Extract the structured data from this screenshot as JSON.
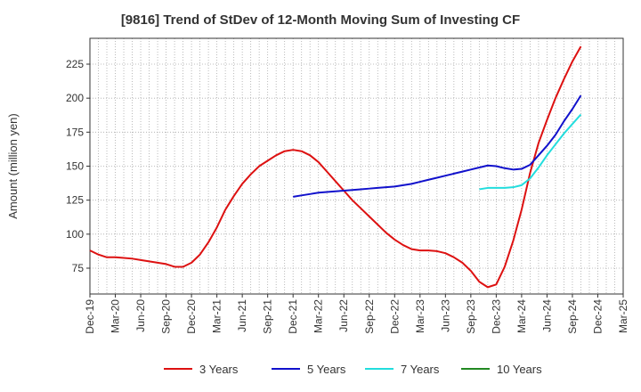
{
  "chart_data": {
    "type": "line",
    "title": "[9816]  Trend of StDev of 12-Month Moving Sum of Investing CF",
    "ylabel": "Amount (million yen)",
    "xlabel": "",
    "ylim": [
      56,
      244
    ],
    "yticks": [
      75,
      100,
      125,
      150,
      175,
      200,
      225
    ],
    "x_tick_labels": [
      "Dec-19",
      "Mar-20",
      "Jun-20",
      "Sep-20",
      "Dec-20",
      "Mar-21",
      "Jun-21",
      "Sep-21",
      "Dec-21",
      "Mar-22",
      "Jun-22",
      "Sep-22",
      "Dec-22",
      "Mar-23",
      "Jun-23",
      "Sep-23",
      "Dec-23",
      "Mar-24",
      "Jun-24",
      "Sep-24",
      "Dec-24",
      "Mar-25"
    ],
    "grid": true,
    "legend_position": "bottom",
    "series": [
      {
        "name": "3 Years",
        "color": "#dd1111",
        "values": [
          88,
          85,
          83,
          83,
          82.5,
          82,
          81,
          80,
          79,
          78,
          76,
          76,
          79,
          85,
          94,
          105,
          118,
          128,
          137,
          144,
          150,
          154,
          158,
          161,
          162,
          161,
          158,
          153,
          146,
          139,
          132,
          125,
          119,
          113,
          107,
          101,
          96,
          92,
          89,
          88,
          88,
          87.5,
          86,
          83,
          79,
          73,
          65,
          61,
          63,
          76,
          95,
          118,
          145,
          167,
          184,
          200,
          214,
          227,
          238
        ],
        "start_index": 0
      },
      {
        "name": "5 Years",
        "color": "#1111cc",
        "values": [
          127.5,
          128.5,
          129.5,
          130.5,
          131,
          131.5,
          132,
          132.5,
          133,
          133.5,
          134,
          134.5,
          135,
          136,
          137,
          138.5,
          140,
          141.5,
          143,
          144.5,
          146,
          147.5,
          149,
          150.5,
          150,
          148.5,
          147.5,
          148,
          151,
          158,
          165,
          173,
          183,
          192,
          202
        ],
        "start_index": 24
      },
      {
        "name": "7 Years",
        "color": "#22dddd",
        "values": [
          133,
          134,
          134,
          134,
          134.5,
          136,
          141,
          149,
          158,
          166,
          174,
          181,
          188
        ],
        "start_index": 46
      },
      {
        "name": "10 Years",
        "color": "#228822",
        "values": [],
        "start_index": 0
      }
    ]
  }
}
